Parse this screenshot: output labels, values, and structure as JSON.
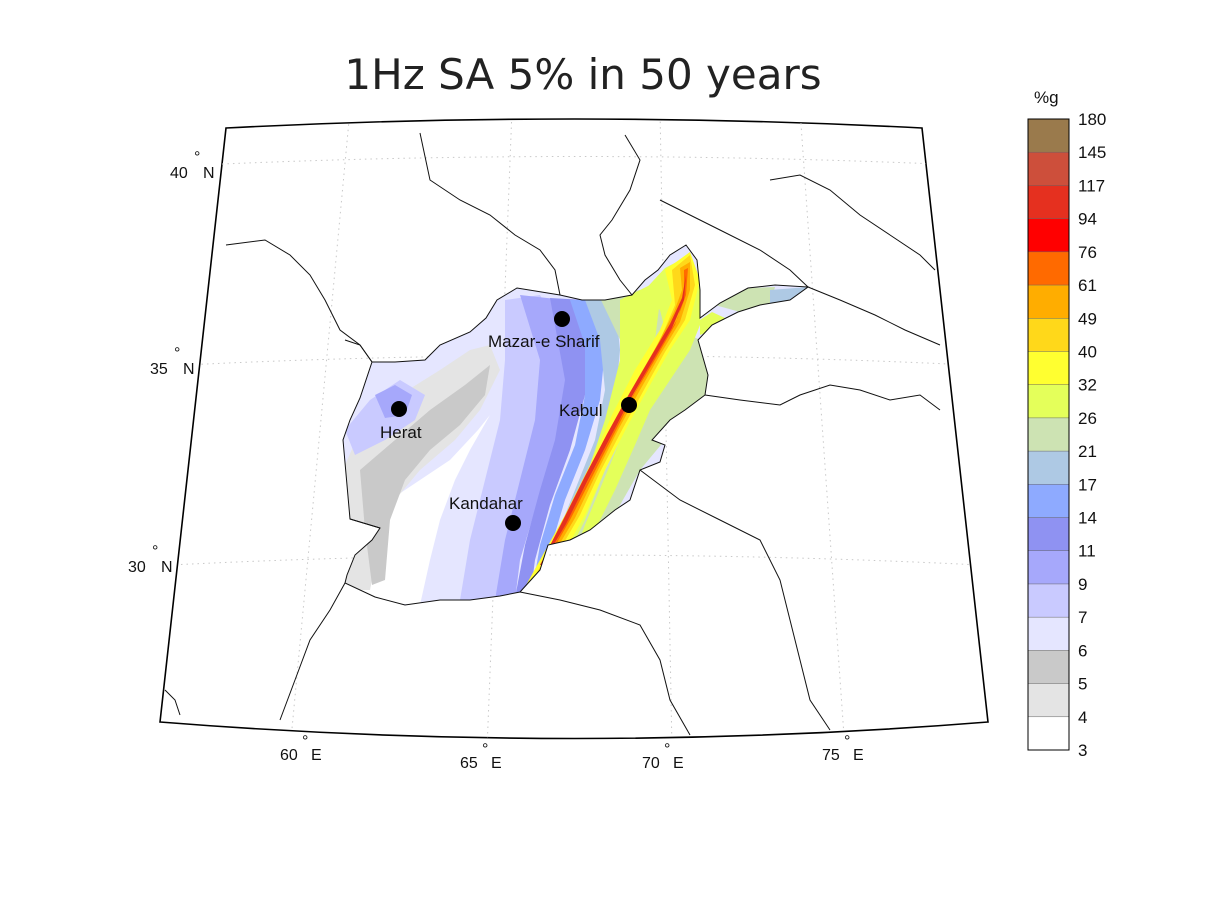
{
  "title": "1Hz SA 5% in 50 years",
  "colorbar": {
    "unit": "%g",
    "levels": [
      {
        "label": "180",
        "color": "#9a7a4c"
      },
      {
        "label": "145",
        "color": "#cd4f3b"
      },
      {
        "label": "117",
        "color": "#e5301f"
      },
      {
        "label": "94",
        "color": "#ff0000"
      },
      {
        "label": "76",
        "color": "#ff6a00"
      },
      {
        "label": "61",
        "color": "#ffad00"
      },
      {
        "label": "49",
        "color": "#ffd81a"
      },
      {
        "label": "40",
        "color": "#ffff30"
      },
      {
        "label": "32",
        "color": "#e4ff5a"
      },
      {
        "label": "26",
        "color": "#cde3b3"
      },
      {
        "label": "21",
        "color": "#aec9e4"
      },
      {
        "label": "17",
        "color": "#8eaaff"
      },
      {
        "label": "14",
        "color": "#8f92f2"
      },
      {
        "label": "11",
        "color": "#a6a8fb"
      },
      {
        "label": "9",
        "color": "#c9caff"
      },
      {
        "label": "7",
        "color": "#e5e6ff"
      },
      {
        "label": "6",
        "color": "#c9c9c9"
      },
      {
        "label": "5",
        "color": "#e4e4e4"
      },
      {
        "label": "4",
        "color": "#ffffff"
      },
      {
        "label": "3",
        "color": ""
      }
    ]
  },
  "lat_ticks": [
    {
      "value": 40,
      "deg": "40",
      "hemi": "N"
    },
    {
      "value": 35,
      "deg": "35",
      "hemi": "N"
    },
    {
      "value": 30,
      "deg": "30",
      "hemi": "N"
    }
  ],
  "lon_ticks": [
    {
      "value": 60,
      "deg": "60",
      "hemi": "E"
    },
    {
      "value": 65,
      "deg": "65",
      "hemi": "E"
    },
    {
      "value": 70,
      "deg": "70",
      "hemi": "E"
    },
    {
      "value": 75,
      "deg": "75",
      "hemi": "E"
    }
  ],
  "cities": [
    {
      "name": "Mazar-e Sharif",
      "lon": 67.1,
      "lat": 36.7
    },
    {
      "name": "Kabul",
      "lon": 69.2,
      "lat": 34.5
    },
    {
      "name": "Herat",
      "lon": 62.2,
      "lat": 34.35
    },
    {
      "name": "Kandahar",
      "lon": 65.7,
      "lat": 31.6
    }
  ]
}
